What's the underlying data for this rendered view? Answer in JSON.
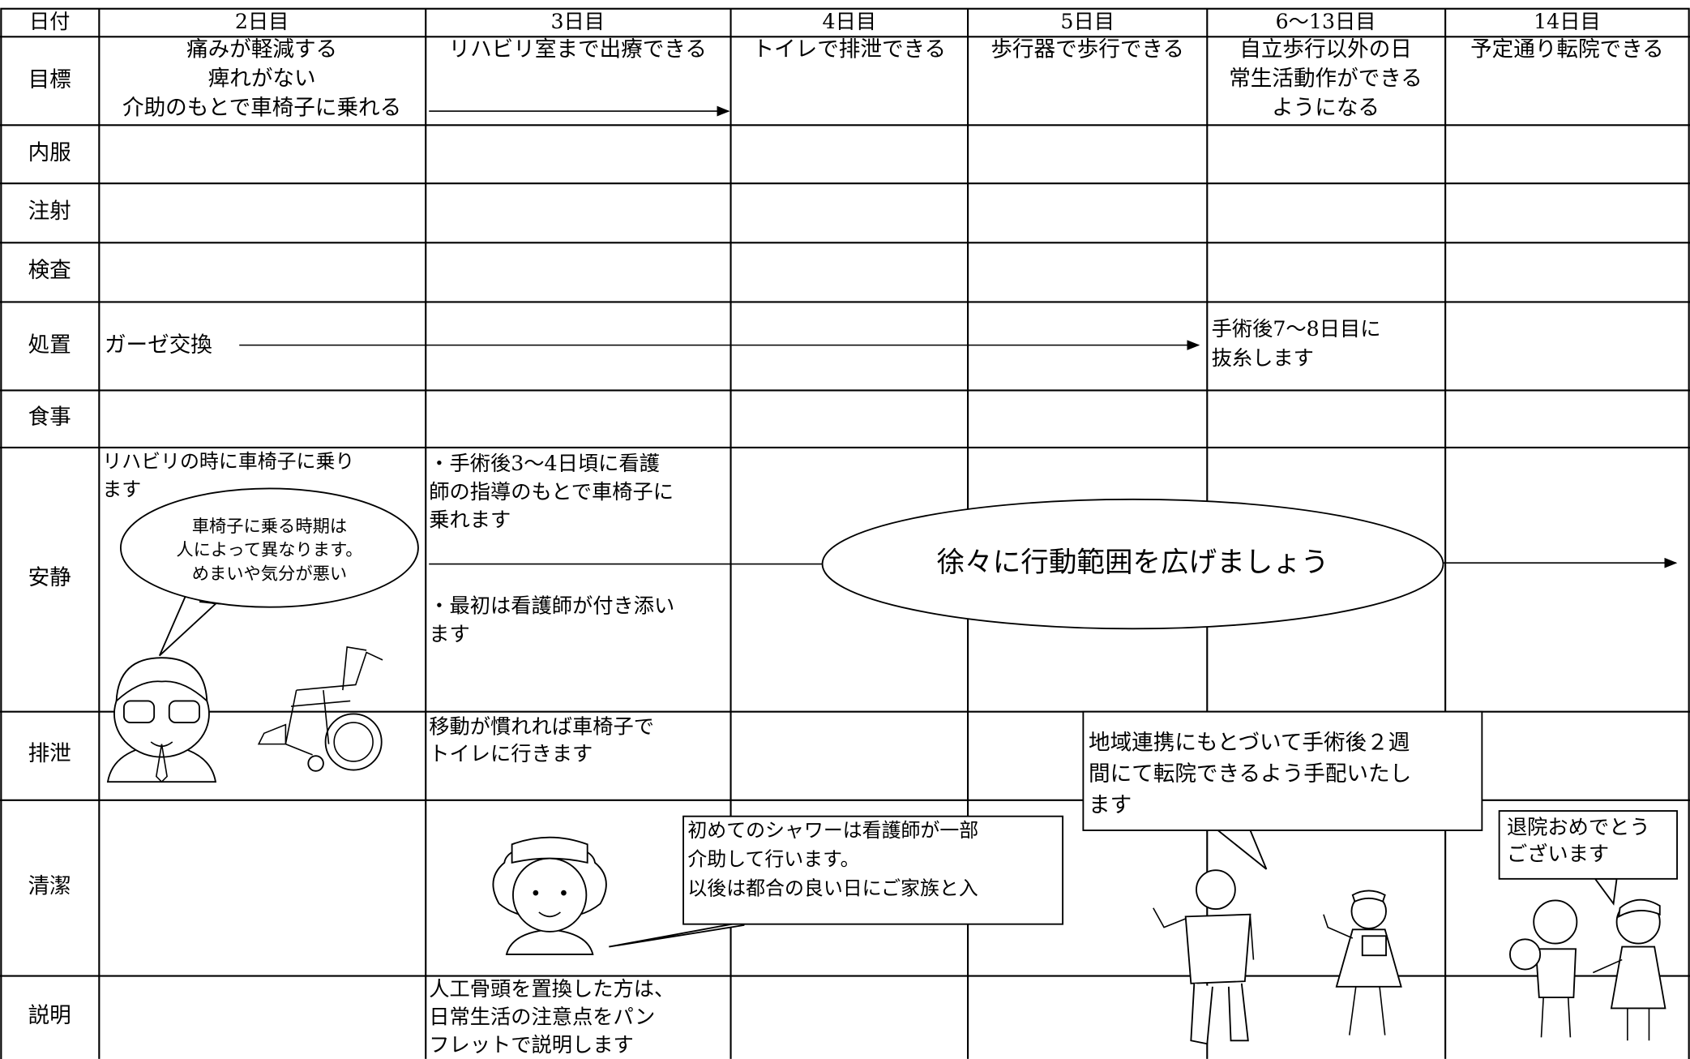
{
  "table": {
    "header": [
      "日付",
      "2日目",
      "3日目",
      "4日目",
      "5日目",
      "6〜13日目",
      "14日目"
    ],
    "row_labels": [
      "目標",
      "内服",
      "注射",
      "検査",
      "処置",
      "食事",
      "安静",
      "排泄",
      "清潔",
      "説明"
    ],
    "goals": [
      [
        "痛みが軽減する",
        "痺れがない",
        "介助のもとで車椅子に乗れる"
      ],
      [
        "リハビリ室まで出療できる"
      ],
      [
        "トイレで排泄できる"
      ],
      [
        "歩行器で歩行できる"
      ],
      [
        "自立歩行以外の日",
        "常生活動作ができる",
        "ようになる"
      ],
      [
        "予定通り転院できる"
      ]
    ]
  },
  "notes": {
    "gauze": "ガーゼ交換",
    "suture": [
      "手術後7〜8日目に",
      "抜糸します"
    ],
    "rest_day2": [
      "リハビリの時に車椅子に乗り",
      "ます"
    ],
    "rest_day3_a": [
      "・手術後3〜4日頃に看護",
      "師の指導のもとで車椅子に",
      "乗れます"
    ],
    "rest_day3_b": [
      "・最初は看護師が付き添い",
      "ます"
    ],
    "rest_banner": "徐々に行動範囲を広げましょう",
    "excretion_day3": [
      "移動が慣れれば車椅子で",
      "トイレに行きます"
    ],
    "explain_day3": [
      "人工骨頭を置換した方は、",
      "日常生活の注意点をパン",
      "フレットで説明します"
    ]
  },
  "callouts": {
    "doctor": [
      "車椅子に乗る時期は",
      "人によって異なります。",
      "めまいや気分が悪い"
    ],
    "nurse": [
      "初めてのシャワーは看護師が一部",
      "介助して行います。",
      "以後は都合の良い日にご家族と入"
    ],
    "transfer": [
      "地域連携にもとづいて手術後２週",
      "間にて転院できるよう手配いたし",
      "ます"
    ],
    "discharge": [
      "退院おめでとう",
      "ございます"
    ]
  }
}
